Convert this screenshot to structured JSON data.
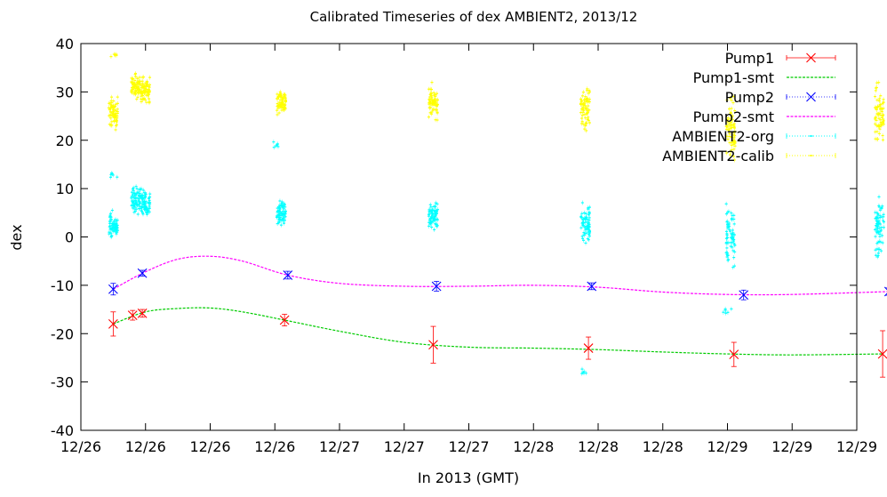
{
  "chart_data": {
    "type": "scatter",
    "title": "Calibrated Timeseries of dex AMBIENT2, 2013/12",
    "xlabel": "In 2013 (GMT)",
    "ylabel": "dex",
    "ylim": [
      -40,
      40
    ],
    "yticks": [
      -40,
      -30,
      -20,
      -10,
      0,
      10,
      20,
      30,
      40
    ],
    "xlim": [
      0,
      12
    ],
    "xtick_labels": [
      "12/26",
      "12/26",
      "12/26",
      "12/26",
      "12/27",
      "12/27",
      "12/27",
      "12/28",
      "12/28",
      "12/28",
      "12/29",
      "12/29",
      "12/29"
    ],
    "grid": false,
    "legend_position": "top-right",
    "series": [
      {
        "name": "Pump1",
        "style": "points-errorbars",
        "marker": "x",
        "color": "#ff0000",
        "points": [
          {
            "x": 0.5,
            "y": -18.0,
            "err": 2.5
          },
          {
            "x": 0.8,
            "y": -16.2,
            "err": 1.0
          },
          {
            "x": 0.95,
            "y": -15.8,
            "err": 0.8
          },
          {
            "x": 3.15,
            "y": -17.2,
            "err": 1.2
          },
          {
            "x": 5.45,
            "y": -22.3,
            "err": 3.8
          },
          {
            "x": 7.85,
            "y": -23.0,
            "err": 2.3
          },
          {
            "x": 10.1,
            "y": -24.3,
            "err": 2.5
          },
          {
            "x": 12.4,
            "y": -24.2,
            "err": 4.8
          }
        ]
      },
      {
        "name": "Pump1-smt",
        "style": "line",
        "color": "#00cc00",
        "points": [
          {
            "x": 0.5,
            "y": -18.0
          },
          {
            "x": 1.0,
            "y": -15.5
          },
          {
            "x": 1.5,
            "y": -14.8
          },
          {
            "x": 2.0,
            "y": -14.7
          },
          {
            "x": 2.5,
            "y": -15.5
          },
          {
            "x": 3.15,
            "y": -17.2
          },
          {
            "x": 4.0,
            "y": -19.5
          },
          {
            "x": 5.0,
            "y": -21.8
          },
          {
            "x": 6.0,
            "y": -22.8
          },
          {
            "x": 7.0,
            "y": -23.0
          },
          {
            "x": 8.0,
            "y": -23.3
          },
          {
            "x": 9.0,
            "y": -23.8
          },
          {
            "x": 10.0,
            "y": -24.2
          },
          {
            "x": 11.0,
            "y": -24.4
          },
          {
            "x": 12.4,
            "y": -24.2
          }
        ]
      },
      {
        "name": "Pump2",
        "style": "points-errorbars",
        "marker": "x",
        "color": "#0000ff",
        "points": [
          {
            "x": 0.5,
            "y": -10.8,
            "err": 1.2
          },
          {
            "x": 0.95,
            "y": -7.5,
            "err": 0.6
          },
          {
            "x": 3.2,
            "y": -7.9,
            "err": 0.8
          },
          {
            "x": 5.5,
            "y": -10.2,
            "err": 1.0
          },
          {
            "x": 7.9,
            "y": -10.2,
            "err": 0.7
          },
          {
            "x": 10.25,
            "y": -12.0,
            "err": 1.0
          },
          {
            "x": 12.5,
            "y": -11.3,
            "err": 0.8
          }
        ]
      },
      {
        "name": "Pump2-smt",
        "style": "line",
        "color": "#ff00ff",
        "points": [
          {
            "x": 0.5,
            "y": -10.8
          },
          {
            "x": 1.0,
            "y": -7.2
          },
          {
            "x": 1.5,
            "y": -4.6
          },
          {
            "x": 2.0,
            "y": -4.0
          },
          {
            "x": 2.5,
            "y": -5.0
          },
          {
            "x": 3.2,
            "y": -7.9
          },
          {
            "x": 4.0,
            "y": -9.6
          },
          {
            "x": 5.0,
            "y": -10.2
          },
          {
            "x": 6.0,
            "y": -10.2
          },
          {
            "x": 7.0,
            "y": -10.0
          },
          {
            "x": 8.0,
            "y": -10.4
          },
          {
            "x": 9.0,
            "y": -11.4
          },
          {
            "x": 10.0,
            "y": -11.9
          },
          {
            "x": 11.0,
            "y": -11.9
          },
          {
            "x": 12.5,
            "y": -11.3
          }
        ]
      },
      {
        "name": "AMBIENT2-org",
        "style": "dots",
        "color": "#00ffff",
        "clusters": [
          {
            "x": 0.5,
            "center": 2.5,
            "spread": 2.0
          },
          {
            "x": 0.5,
            "center": 13.0,
            "spread": 0.6
          },
          {
            "x": 0.85,
            "center": 7.5,
            "spread": 2.0
          },
          {
            "x": 1.0,
            "center": 7.0,
            "spread": 2.0
          },
          {
            "x": 3.1,
            "center": 5.0,
            "spread": 1.8
          },
          {
            "x": 3.05,
            "center": 19.0,
            "spread": 0.6
          },
          {
            "x": 5.45,
            "center": 4.5,
            "spread": 2.5
          },
          {
            "x": 7.8,
            "center": 3.0,
            "spread": 3.5
          },
          {
            "x": 7.75,
            "center": -28.0,
            "spread": 0.8
          },
          {
            "x": 10.05,
            "center": 0.0,
            "spread": 5.0
          },
          {
            "x": 10.0,
            "center": -15.5,
            "spread": 0.8
          },
          {
            "x": 12.35,
            "center": 2.0,
            "spread": 5.0
          }
        ]
      },
      {
        "name": "AMBIENT2-calib",
        "style": "dots",
        "color": "#ffff00",
        "clusters": [
          {
            "x": 0.5,
            "center": 25.5,
            "spread": 2.5
          },
          {
            "x": 0.5,
            "center": 38.0,
            "spread": 0.5
          },
          {
            "x": 0.85,
            "center": 31.0,
            "spread": 2.0
          },
          {
            "x": 1.0,
            "center": 30.5,
            "spread": 2.0
          },
          {
            "x": 3.1,
            "center": 28.0,
            "spread": 2.0
          },
          {
            "x": 5.45,
            "center": 28.0,
            "spread": 2.5
          },
          {
            "x": 7.8,
            "center": 26.5,
            "spread": 3.5
          },
          {
            "x": 10.05,
            "center": 22.0,
            "spread": 5.0
          },
          {
            "x": 12.35,
            "center": 24.5,
            "spread": 5.0
          }
        ]
      }
    ]
  }
}
